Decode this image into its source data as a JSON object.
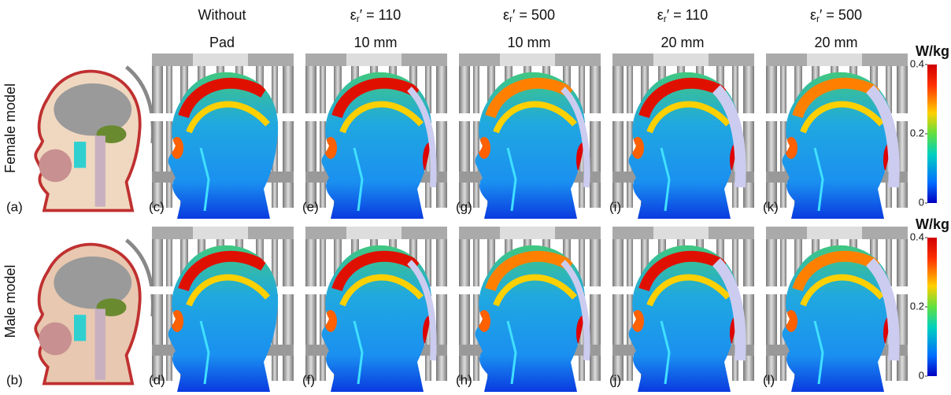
{
  "columns": [
    {
      "lines": [
        "Without",
        "Pad"
      ]
    },
    {
      "symbol": "ε",
      "subscript": "r",
      "relation": "′ = 110",
      "thickness": "10 mm"
    },
    {
      "symbol": "ε",
      "subscript": "r",
      "relation": "′ = 500",
      "thickness": "10 mm"
    },
    {
      "symbol": "ε",
      "subscript": "r",
      "relation": "′ = 110",
      "thickness": "20 mm"
    },
    {
      "symbol": "ε",
      "subscript": "r",
      "relation": "′ = 500",
      "thickness": "20 mm"
    }
  ],
  "rows": [
    "Female model",
    "Male model"
  ],
  "panel_labels": [
    [
      "(a)",
      "(c)",
      "(e)",
      "(g)",
      "(i)",
      "(k)"
    ],
    [
      "(b)",
      "(d)",
      "(f)",
      "(h)",
      "(j)",
      "(l)"
    ]
  ],
  "colorbar": {
    "unit": "W/kg",
    "range": [
      0,
      0.4
    ],
    "ticks": [
      0.4,
      0.2,
      0
    ]
  }
}
